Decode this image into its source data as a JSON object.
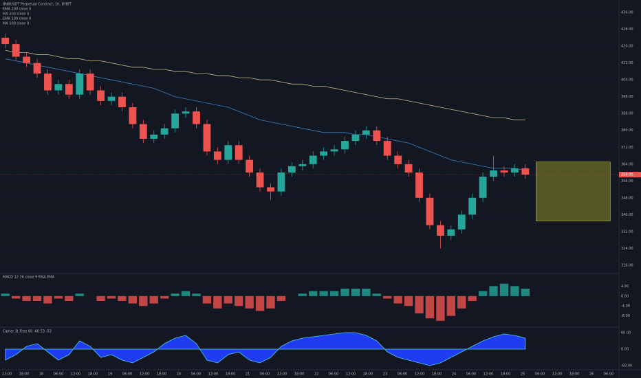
{
  "chart_data": {
    "type": "candlestick",
    "title": "BNBUSDT Perpetual Contract, 1h, BYBIT",
    "indicators": [
      "EMA 200 close 0",
      "MA 200 close 0",
      "EMA 100 close 0",
      "MA 100 close 0"
    ],
    "open": [
      424,
      421,
      415,
      412,
      407,
      399,
      402,
      397,
      407,
      399,
      394,
      396,
      391,
      383,
      376,
      378,
      381,
      388,
      389,
      383,
      370,
      366,
      373,
      366,
      360,
      353,
      351,
      360,
      363,
      364,
      368,
      370,
      371,
      375,
      378,
      380,
      375,
      368,
      364,
      360,
      348,
      335,
      330,
      333,
      340,
      348,
      358,
      361,
      360,
      362
    ],
    "high": [
      426,
      423,
      417,
      414,
      409,
      404,
      404,
      409,
      409,
      401,
      398,
      398,
      393,
      385,
      380,
      383,
      390,
      391,
      391,
      385,
      372,
      375,
      375,
      368,
      362,
      355,
      362,
      365,
      366,
      370,
      372,
      373,
      377,
      380,
      382,
      382,
      377,
      370,
      366,
      362,
      350,
      337,
      335,
      342,
      350,
      360,
      368,
      363,
      364,
      364
    ],
    "low": [
      419,
      413,
      410,
      405,
      397,
      397,
      395,
      395,
      397,
      392,
      392,
      389,
      381,
      374,
      374,
      376,
      379,
      386,
      381,
      368,
      364,
      364,
      364,
      358,
      351,
      347,
      349,
      358,
      361,
      362,
      366,
      368,
      369,
      373,
      376,
      373,
      366,
      362,
      358,
      346,
      333,
      324,
      328,
      331,
      338,
      346,
      356,
      358,
      358,
      357
    ],
    "close": [
      421,
      415,
      412,
      407,
      399,
      402,
      397,
      407,
      399,
      394,
      396,
      391,
      383,
      376,
      378,
      381,
      388,
      389,
      383,
      370,
      366,
      373,
      366,
      360,
      353,
      351,
      360,
      363,
      364,
      368,
      370,
      371,
      375,
      378,
      380,
      375,
      368,
      364,
      360,
      348,
      335,
      330,
      333,
      340,
      348,
      358,
      361,
      360,
      362,
      359
    ],
    "up_color": "#26a69a",
    "down_color": "#ef5350",
    "series": [
      {
        "name": "EMA 200",
        "color": "#c9b98a",
        "values": [
          418,
          417,
          417,
          416,
          416,
          415,
          414,
          414,
          413,
          413,
          412,
          411,
          410,
          410,
          409,
          409,
          408,
          408,
          407,
          407,
          406,
          406,
          405,
          405,
          404,
          404,
          403,
          402,
          402,
          401,
          401,
          400,
          399,
          398,
          397,
          396,
          395,
          395,
          394,
          393,
          392,
          391,
          390,
          389,
          388,
          387,
          386,
          386,
          385,
          385
        ]
      },
      {
        "name": "MA 100",
        "color": "#3d7fc1",
        "values": [
          414,
          413,
          412,
          411,
          410,
          409,
          408,
          407,
          406,
          405,
          404,
          403,
          402,
          401,
          400,
          398,
          396,
          395,
          394,
          393,
          392,
          391,
          389,
          387,
          385,
          384,
          383,
          382,
          381,
          380,
          379,
          379,
          379,
          378,
          378,
          377,
          376,
          375,
          374,
          372,
          370,
          368,
          366,
          365,
          364,
          363,
          362,
          362,
          362,
          361
        ]
      }
    ],
    "xlim": [
      -0.5,
      57.5
    ],
    "ylim": [
      314,
      438
    ],
    "yticks": [
      {
        "value": 436,
        "label": "436.00"
      },
      {
        "value": 428,
        "label": "428.00"
      },
      {
        "value": 420,
        "label": "420.00"
      },
      {
        "value": 412,
        "label": "412.00"
      },
      {
        "value": 404,
        "label": "404.00"
      },
      {
        "value": 396,
        "label": "396.00"
      },
      {
        "value": 388,
        "label": "388.00"
      },
      {
        "value": 380,
        "label": "380.00"
      },
      {
        "value": 372,
        "label": "372.00"
      },
      {
        "value": 364,
        "label": "364.00"
      },
      {
        "value": 356,
        "label": "356.00"
      },
      {
        "value": 348,
        "label": "348.00"
      },
      {
        "value": 340,
        "label": "340.00"
      },
      {
        "value": 332,
        "label": "332.00"
      },
      {
        "value": 324,
        "label": "324.00"
      },
      {
        "value": 316,
        "label": "316.00"
      }
    ],
    "last_price_label": "359.00",
    "position_box": {
      "x": [
        50,
        57
      ],
      "y": [
        365,
        337
      ],
      "color": "#8a8a2a"
    },
    "time_labels": [
      "12:00",
      "18:00",
      "18",
      "06:00",
      "12:00",
      "18:00",
      "19",
      "06:00",
      "12:00",
      "18:00",
      "20",
      "06:00",
      "12:00",
      "18:00",
      "21",
      "06:00",
      "12:00",
      "18:00",
      "22",
      "06:00",
      "12:00",
      "18:00",
      "23",
      "06:00",
      "12:00",
      "18:00",
      "24",
      "06:00",
      "12:00",
      "18:00",
      "25",
      "06:00",
      "12:00",
      "18:00",
      "26",
      "06:00"
    ],
    "macd": {
      "title": "MACD 12 26 close 9 EMA EMA",
      "values": [
        1,
        -1,
        -2,
        -2,
        -3,
        -1,
        -2,
        1,
        0,
        -2,
        -1,
        -2,
        -3,
        -4,
        -3,
        -1,
        1,
        2,
        1,
        -3,
        -5,
        -3,
        -4,
        -5,
        -6,
        -5,
        -2,
        0,
        1,
        2,
        2,
        2,
        3,
        3,
        3,
        1,
        -1,
        -3,
        -4,
        -7,
        -9,
        -10,
        -8,
        -5,
        -2,
        2,
        4,
        5,
        4,
        3
      ],
      "ylim": [
        -12,
        8
      ],
      "yticks": [
        {
          "value": 4,
          "label": "4.00"
        },
        {
          "value": 0,
          "label": "0.00"
        },
        {
          "value": -4,
          "label": "-4.00"
        },
        {
          "value": -8,
          "label": "-8.00"
        }
      ]
    },
    "oscillator": {
      "title": "Cipher_B_Free 60 -60 53 -53",
      "color": "#1f3cf0",
      "values": [
        -40,
        -20,
        10,
        20,
        -10,
        -40,
        -20,
        30,
        10,
        -30,
        -20,
        -40,
        -50,
        -30,
        -10,
        20,
        40,
        50,
        20,
        -40,
        -50,
        -20,
        -10,
        -40,
        -50,
        -30,
        10,
        30,
        40,
        45,
        50,
        55,
        60,
        60,
        50,
        30,
        -10,
        -30,
        -40,
        -50,
        -60,
        -50,
        -30,
        -10,
        10,
        30,
        45,
        55,
        50,
        40
      ],
      "ylim": [
        -70,
        70
      ],
      "yticks": [
        {
          "value": 60,
          "label": "60.00"
        },
        {
          "value": 0,
          "label": "0.00"
        },
        {
          "value": -60,
          "label": "-60.00"
        }
      ]
    }
  }
}
